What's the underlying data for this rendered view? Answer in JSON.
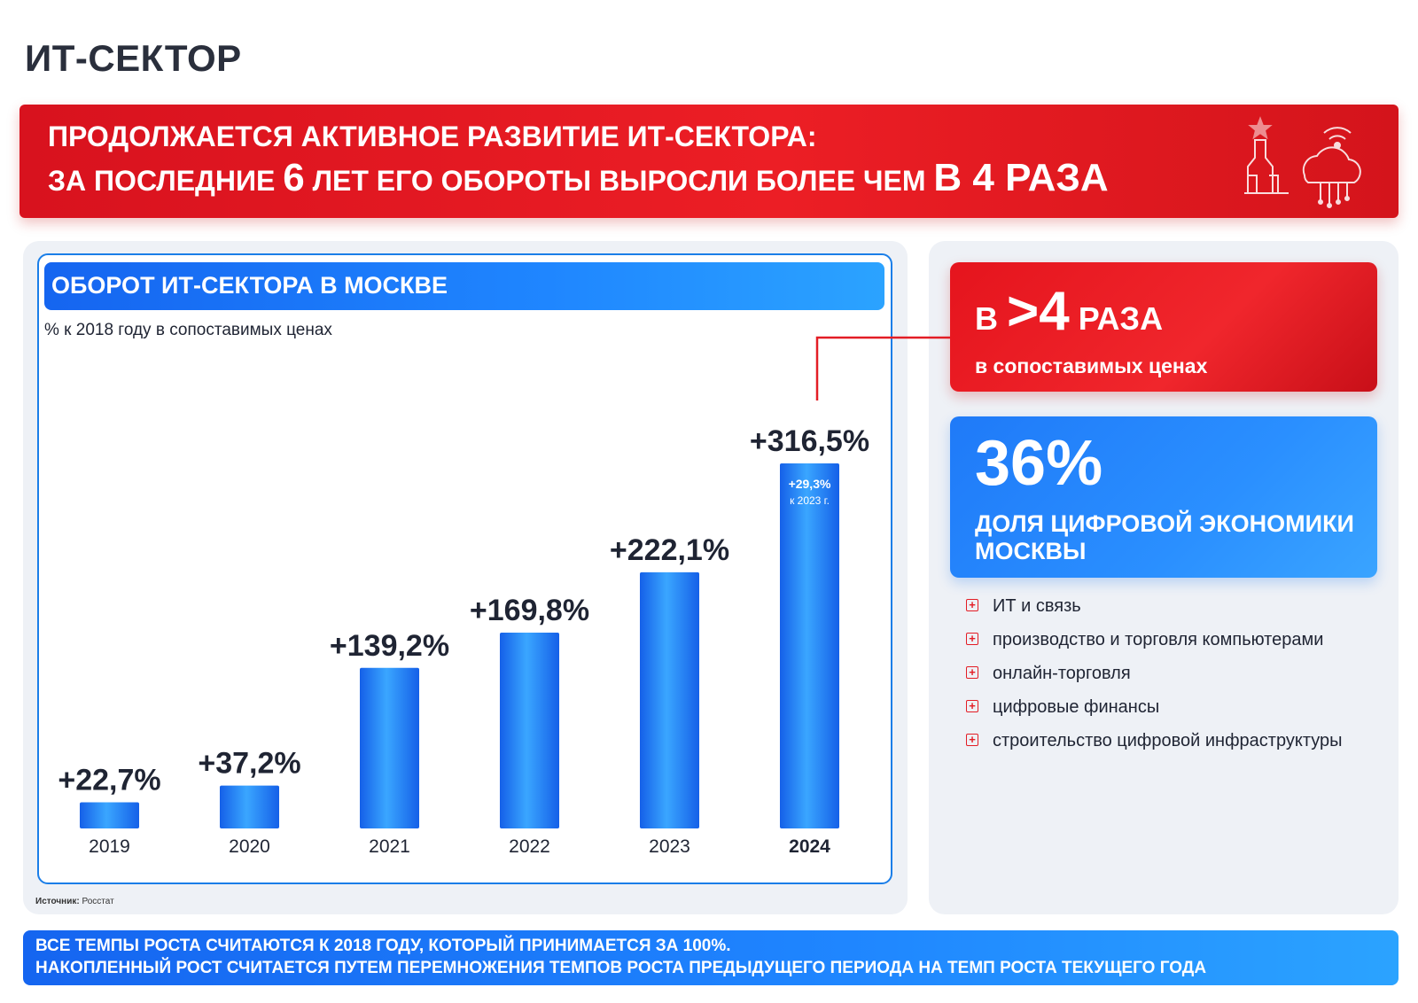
{
  "page": {
    "title": "ИТ-СЕКТОР"
  },
  "banner": {
    "line1": "ПРОДОЛЖАЕТСЯ АКТИВНОЕ РАЗВИТИЕ ИТ-СЕКТОРА:",
    "line2_a": "ЗА ПОСЛЕДНИЕ ",
    "line2_num": "6",
    "line2_b": " ЛЕТ ЕГО ОБОРОТЫ ВЫРОСЛИ БОЛЕЕ ЧЕМ ",
    "line2_big": "В 4 РАЗА",
    "icon": "kremlin-cloud-wifi-icon"
  },
  "chart_card": {
    "header": "ОБОРОТ ИТ-СЕКТОРА В МОСКВЕ",
    "subtitle": "% к 2018 году в сопоставимых ценах",
    "source_label": "Источник:",
    "source_value": "Росстат"
  },
  "chart_data": {
    "type": "bar",
    "categories": [
      "2019",
      "2020",
      "2021",
      "2022",
      "2023",
      "2024"
    ],
    "values": [
      22.7,
      37.2,
      139.2,
      169.8,
      222.1,
      316.5
    ],
    "data_labels": [
      "+22,7%",
      "+37,2%",
      "+139,2%",
      "+169,8%",
      "+222,1%",
      "+316,5%"
    ],
    "highlight_category": "2024",
    "bar_annotation": {
      "category": "2024",
      "line1": "+29,3%",
      "line2": "к 2023 г."
    },
    "title": "ОБОРОТ ИТ-СЕКТОРА В МОСКВЕ",
    "subtitle": "% к 2018 году в сопоставимых ценах",
    "xlabel": "",
    "ylabel": "",
    "grid": false,
    "colors": {
      "bar_dark": "#1560e8",
      "bar_light": "#3aa6ff",
      "text": "#1f2433",
      "connector": "#e31d25"
    }
  },
  "red_card": {
    "prefix": "В ",
    "number": ">4",
    "suffix": " РАЗА",
    "caption": "в сопоставимых ценах"
  },
  "blue_card": {
    "percent": "36%",
    "description": "ДОЛЯ ЦИФРОВОЙ ЭКОНОМИКИ МОСКВЫ"
  },
  "list": {
    "items": [
      "ИТ и связь",
      "производство и торговля компьютерами",
      "онлайн-торговля",
      "цифровые финансы",
      "строительство цифровой инфраструктуры"
    ],
    "bullet_icon": "plus-square-icon"
  },
  "footer": {
    "line1": "ВСЕ ТЕМПЫ РОСТА СЧИТАЮТСЯ К 2018 ГОДУ, КОТОРЫЙ ПРИНИМАЕТСЯ ЗА 100%.",
    "line2": "НАКОПЛЕННЫЙ РОСТ СЧИТАЕТСЯ ПУТЕМ ПЕРЕМНОЖЕНИЯ ТЕМПОВ РОСТА ПРЕДЫДУЩЕГО ПЕРИОДА НА ТЕМП РОСТА ТЕКУЩЕГО ГОДА"
  },
  "colors": {
    "red": "#e31d25",
    "blue": "#1f86ff",
    "panel_bg": "#eef1f6"
  }
}
